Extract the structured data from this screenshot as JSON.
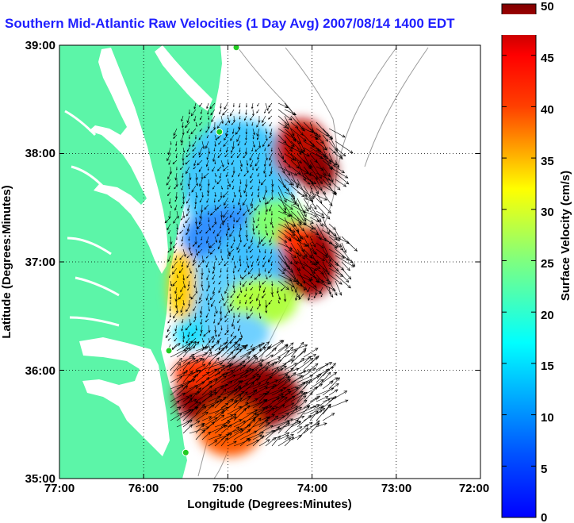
{
  "title": "Southern Mid-Atlantic Raw Velocities (1 Day Avg) 2007/08/14 1400 EDT",
  "map": {
    "x_axis": {
      "label": "Longitude (Degrees:Minutes)",
      "ticks": [
        "77:00",
        "76:00",
        "75:00",
        "74:00",
        "73:00",
        "72:00"
      ],
      "range": [
        -77,
        -72
      ]
    },
    "y_axis": {
      "label": "Latitude (Degrees:Minutes)",
      "ticks": [
        "35:00",
        "36:00",
        "37:00",
        "38:00",
        "39:00"
      ],
      "range": [
        35,
        39
      ]
    },
    "grid": "dotted",
    "land_color": "#5cf5a8",
    "water_color": "#ffffff",
    "stations": [
      {
        "lon": -74.9,
        "lat": 38.98
      },
      {
        "lon": -75.1,
        "lat": 38.2
      },
      {
        "lon": -75.7,
        "lat": 36.18
      },
      {
        "lon": -75.5,
        "lat": 35.24
      }
    ]
  },
  "colorbar": {
    "label": "Surface Velocity (cm/s)",
    "ticks": [
      "0",
      "5",
      "10",
      "15",
      "20",
      "25",
      "30",
      "35",
      "40",
      "45",
      "50"
    ],
    "min": 0,
    "max": 50,
    "colormap": "jet"
  },
  "icons": {
    "station": "green-circle-marker",
    "vector": "velocity-arrow"
  }
}
